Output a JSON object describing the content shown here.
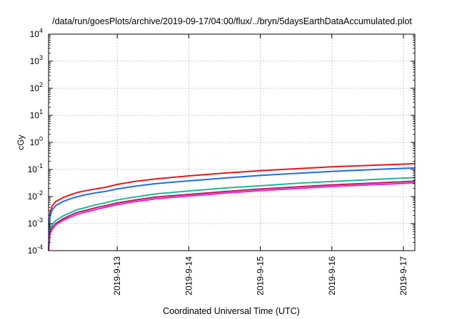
{
  "chart_data": {
    "type": "line",
    "title": "/data/run/goesPlots/archive/2019-09-17/04:00/flux/../bryn/5daysEarthDataAccumulated.plot",
    "xlabel": "Coordinated Universal Time (UTC)",
    "ylabel": "cGy",
    "y_scale": "log",
    "ylim": [
      0.0001,
      10000
    ],
    "xlim": [
      0,
      5.12
    ],
    "grid": true,
    "legend": "none",
    "y_ticks": [
      {
        "base": "10",
        "exp": "-4"
      },
      {
        "base": "10",
        "exp": "-3"
      },
      {
        "base": "10",
        "exp": "-2"
      },
      {
        "base": "10",
        "exp": "-1"
      },
      {
        "base": "10",
        "exp": "0"
      },
      {
        "base": "10",
        "exp": "1"
      },
      {
        "base": "10",
        "exp": "2"
      },
      {
        "base": "10",
        "exp": "3"
      },
      {
        "base": "10",
        "exp": "4"
      }
    ],
    "x_ticks": [
      {
        "x": 0.96,
        "label": "2019-9-13"
      },
      {
        "x": 1.96,
        "label": "2019-9-14"
      },
      {
        "x": 2.96,
        "label": "2019-9-15"
      },
      {
        "x": 3.96,
        "label": "2019-9-16"
      },
      {
        "x": 4.96,
        "label": "2019-9-17"
      }
    ],
    "x": [
      0,
      0.02,
      0.05,
      0.1,
      0.2,
      0.3,
      0.4,
      0.5,
      0.6,
      0.7,
      0.8,
      0.96,
      1.2,
      1.5,
      1.96,
      2.5,
      2.96,
      3.5,
      3.96,
      4.5,
      4.96,
      5.12
    ],
    "series": [
      {
        "color": "#e31a1c",
        "values": [
          0.0001,
          0.0025,
          0.0045,
          0.0065,
          0.009,
          0.0115,
          0.014,
          0.016,
          0.018,
          0.02,
          0.022,
          0.028,
          0.036,
          0.045,
          0.058,
          0.075,
          0.09,
          0.108,
          0.125,
          0.142,
          0.158,
          0.165
        ]
      },
      {
        "color": "#1f6fe0",
        "values": [
          0.0001,
          0.0018,
          0.0032,
          0.0046,
          0.0065,
          0.0082,
          0.0098,
          0.0114,
          0.0128,
          0.0142,
          0.0156,
          0.019,
          0.024,
          0.03,
          0.038,
          0.049,
          0.06,
          0.073,
          0.085,
          0.098,
          0.11,
          0.115
        ]
      },
      {
        "color": "#1db89a",
        "values": [
          0.0001,
          0.0006,
          0.0009,
          0.0013,
          0.0019,
          0.0025,
          0.0033,
          0.0038,
          0.0045,
          0.0052,
          0.0059,
          0.0075,
          0.0095,
          0.0125,
          0.016,
          0.021,
          0.025,
          0.031,
          0.036,
          0.042,
          0.048,
          0.05
        ]
      },
      {
        "color": "#c2185b",
        "values": [
          0.0001,
          0.00045,
          0.0007,
          0.001,
          0.0015,
          0.002,
          0.0026,
          0.003,
          0.0035,
          0.0041,
          0.0046,
          0.0058,
          0.0074,
          0.0095,
          0.012,
          0.0155,
          0.019,
          0.023,
          0.027,
          0.031,
          0.035,
          0.037
        ]
      },
      {
        "color": "#e026d8",
        "values": [
          0.0001,
          0.0004,
          0.0006,
          0.0009,
          0.0013,
          0.0017,
          0.0022,
          0.0026,
          0.003,
          0.0035,
          0.004,
          0.005,
          0.0064,
          0.0082,
          0.0105,
          0.0135,
          0.0165,
          0.02,
          0.0235,
          0.027,
          0.0305,
          0.032
        ]
      }
    ]
  }
}
